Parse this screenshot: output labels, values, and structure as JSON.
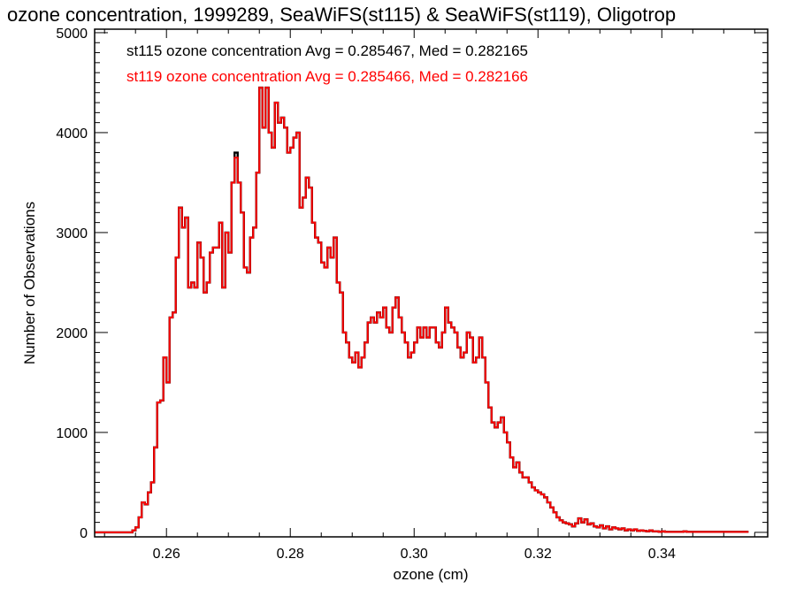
{
  "chart_data": {
    "type": "line",
    "step": true,
    "title": "ozone concentration, 1999289, SeaWiFS(st115) & SeaWiFS(st119), Oligotrop",
    "xlabel": "ozone (cm)",
    "ylabel": "Number of Observations",
    "xlim": [
      0.2484,
      0.3571
    ],
    "ylim": [
      -45,
      5035
    ],
    "xticks": [
      "0.26",
      "0.28",
      "0.30",
      "0.32",
      "0.34"
    ],
    "xtick_values": [
      0.26,
      0.28,
      0.3,
      0.32,
      0.34
    ],
    "yticks": [
      "0",
      "1000",
      "2000",
      "3000",
      "4000",
      "5000"
    ],
    "ytick_values": [
      0,
      1000,
      2000,
      3000,
      4000,
      5000
    ],
    "bin_start": 0.2545,
    "bin_width": 0.0005,
    "legend": [
      {
        "text": "st115 ozone concentration Avg = 0.285467, Med = 0.282165",
        "color": "#000000"
      },
      {
        "text": "st119 ozone concentration Avg = 0.285466, Med = 0.282166",
        "color": "#ff0000"
      }
    ],
    "series": [
      {
        "name": "st115",
        "color": "#000000",
        "values": [
          20,
          50,
          150,
          300,
          280,
          400,
          500,
          850,
          1300,
          1320,
          1750,
          1500,
          2150,
          2200,
          2750,
          3250,
          3050,
          3150,
          2450,
          2500,
          2450,
          2900,
          2750,
          2400,
          2500,
          2800,
          2850,
          2850,
          3100,
          2450,
          3000,
          2800,
          3500,
          3800,
          3500,
          3200,
          2650,
          2600,
          2950,
          3050,
          3600,
          4450,
          4050,
          4450,
          4000,
          3850,
          4300,
          4100,
          4150,
          4050,
          3800,
          3850,
          3950,
          4000,
          3250,
          3350,
          3550,
          3450,
          3100,
          2950,
          2900,
          2700,
          2650,
          2850,
          2750,
          2950,
          2500,
          2400,
          2000,
          1900,
          1750,
          1700,
          1800,
          1650,
          1750,
          1900,
          2100,
          2150,
          2100,
          2200,
          2150,
          2250,
          2050,
          2000,
          2250,
          2350,
          2150,
          2000,
          1900,
          1750,
          1800,
          1900,
          2050,
          1950,
          2050,
          1950,
          2050,
          2050,
          1900,
          1850,
          2000,
          2250,
          2100,
          2050,
          2000,
          1850,
          1750,
          1800,
          2000,
          1950,
          1700,
          1750,
          1950,
          1750,
          1500,
          1250,
          1100,
          1050,
          1100,
          1150,
          1000,
          900,
          750,
          650,
          700,
          600,
          550,
          550,
          500,
          450,
          420,
          400,
          380,
          350,
          300,
          250,
          200,
          150,
          120,
          100,
          90,
          80,
          60,
          90,
          140,
          100,
          130,
          80,
          90,
          60,
          50,
          70,
          40,
          60,
          30,
          50,
          40,
          30,
          40,
          20,
          30,
          20,
          30,
          15,
          20,
          15,
          10,
          20,
          10,
          10,
          5,
          10,
          5,
          5,
          5,
          5,
          5,
          5,
          10,
          5,
          5,
          5,
          5,
          5,
          5,
          5,
          5,
          5,
          5,
          5,
          5,
          5,
          5,
          5,
          5,
          5,
          5,
          5,
          5
        ]
      },
      {
        "name": "st119",
        "color": "#ff0000",
        "values": [
          20,
          50,
          150,
          300,
          280,
          400,
          500,
          850,
          1300,
          1320,
          1750,
          1500,
          2150,
          2200,
          2750,
          3250,
          3050,
          3150,
          2450,
          2500,
          2450,
          2900,
          2750,
          2400,
          2500,
          2800,
          2850,
          2850,
          3100,
          2450,
          3000,
          2800,
          3500,
          3750,
          3500,
          3200,
          2650,
          2600,
          2950,
          3050,
          3600,
          4450,
          4050,
          4450,
          4000,
          3850,
          4300,
          4100,
          4150,
          4050,
          3800,
          3850,
          3950,
          4000,
          3250,
          3350,
          3550,
          3450,
          3100,
          2950,
          2900,
          2700,
          2650,
          2850,
          2750,
          2950,
          2500,
          2400,
          2000,
          1900,
          1750,
          1700,
          1800,
          1650,
          1750,
          1900,
          2100,
          2150,
          2100,
          2200,
          2150,
          2250,
          2050,
          2000,
          2250,
          2350,
          2150,
          2000,
          1900,
          1750,
          1800,
          1900,
          2050,
          1950,
          2050,
          1950,
          2050,
          2050,
          1900,
          1850,
          2000,
          2250,
          2100,
          2050,
          2000,
          1850,
          1750,
          1800,
          2000,
          1950,
          1700,
          1750,
          1950,
          1750,
          1500,
          1250,
          1100,
          1050,
          1100,
          1150,
          1000,
          900,
          750,
          650,
          700,
          600,
          550,
          550,
          500,
          450,
          420,
          400,
          380,
          350,
          300,
          250,
          200,
          150,
          120,
          100,
          90,
          80,
          60,
          90,
          140,
          100,
          130,
          80,
          90,
          60,
          50,
          70,
          40,
          60,
          30,
          50,
          40,
          30,
          40,
          20,
          30,
          20,
          30,
          15,
          20,
          15,
          10,
          20,
          10,
          10,
          5,
          10,
          5,
          5,
          5,
          5,
          5,
          5,
          10,
          5,
          5,
          5,
          5,
          5,
          5,
          5,
          5,
          5,
          5,
          5,
          5,
          5,
          5,
          5,
          5,
          5,
          5,
          5,
          5
        ]
      }
    ]
  }
}
